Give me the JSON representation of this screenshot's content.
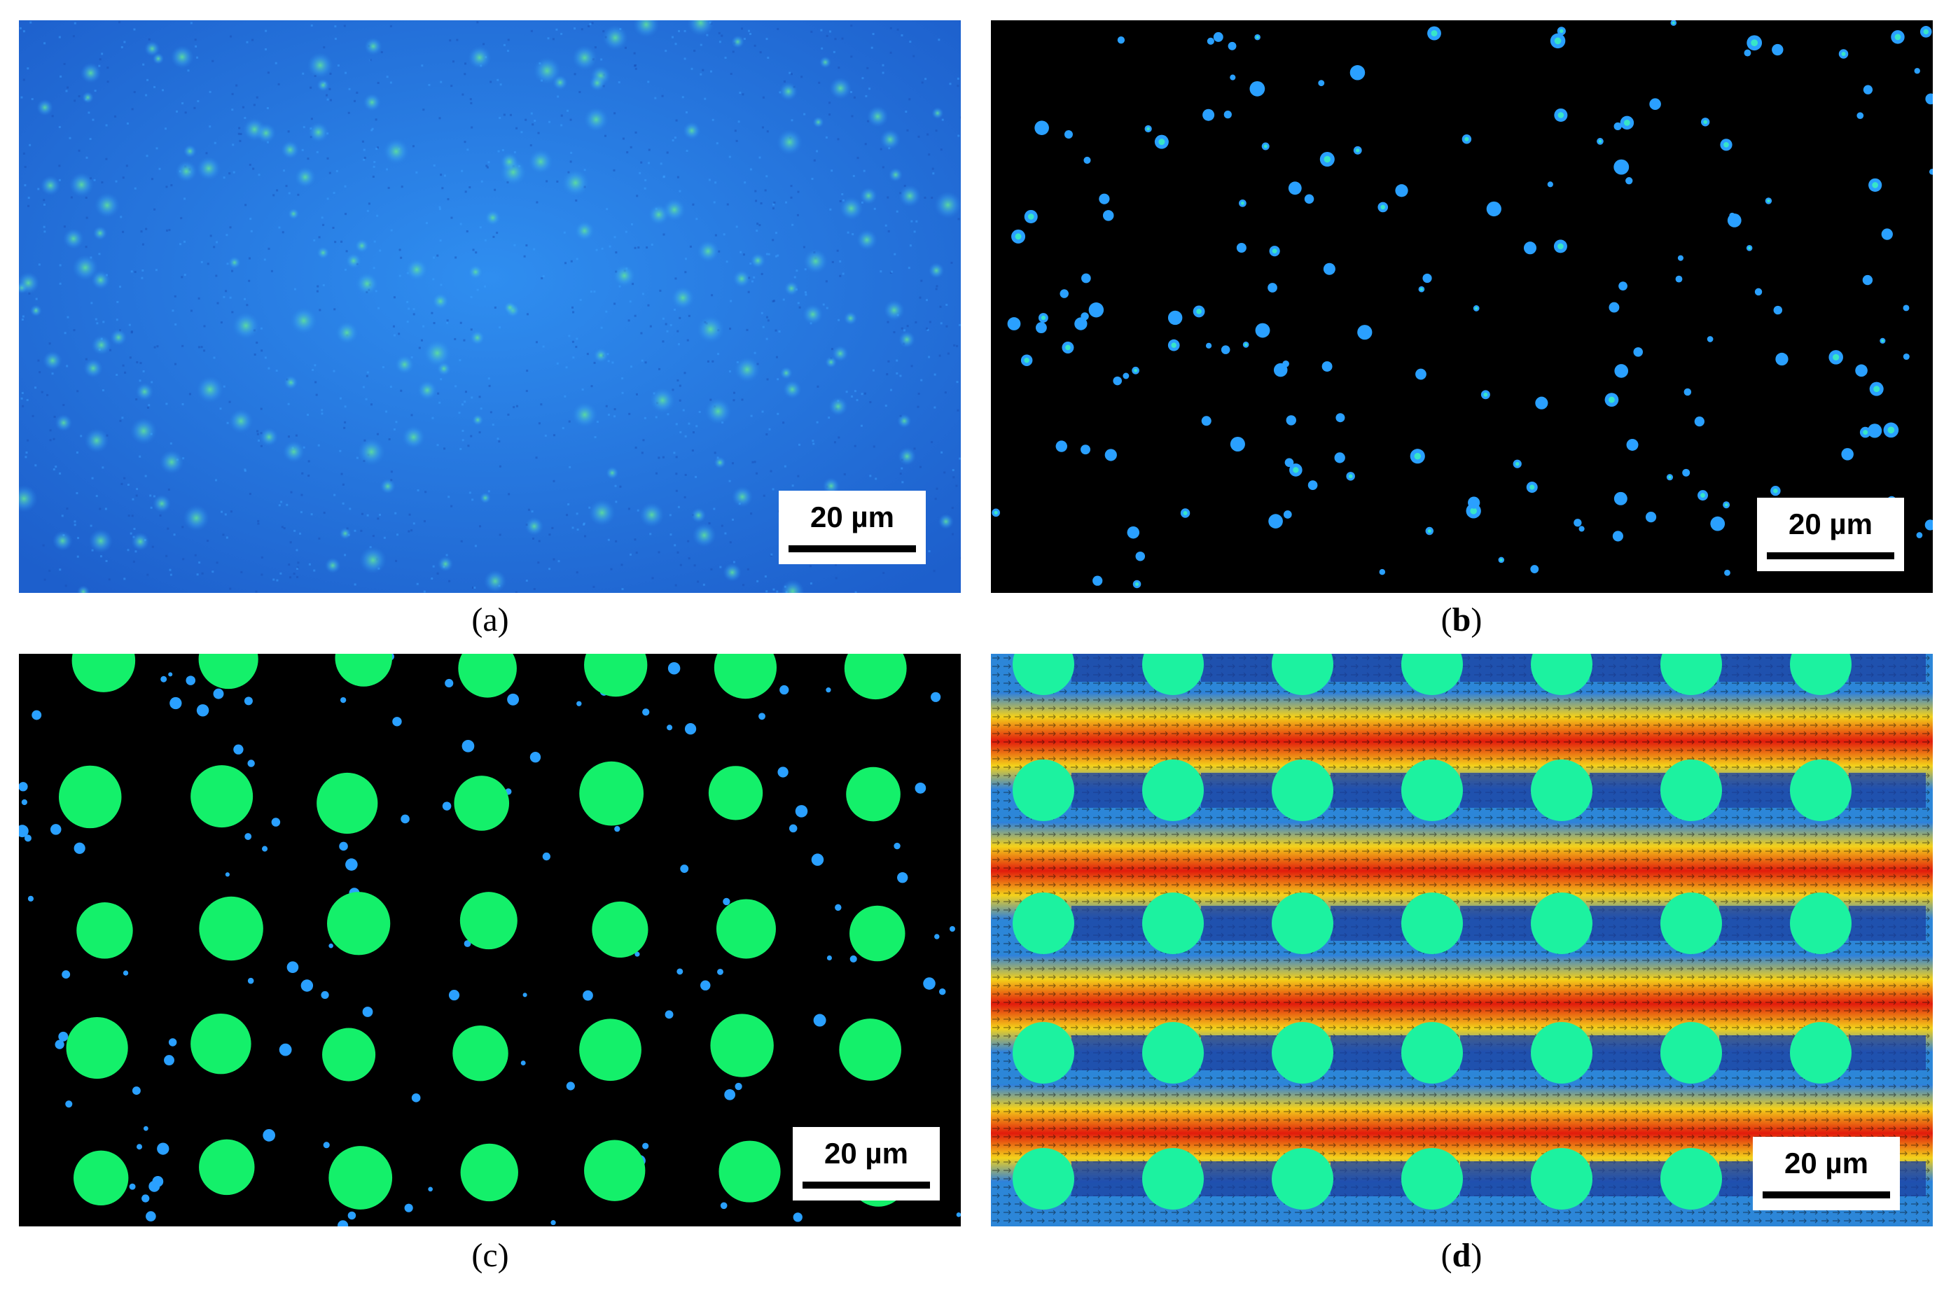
{
  "panels": [
    {
      "id": "a",
      "caption": "a",
      "caption_bold": false,
      "scale_label": "20 µm",
      "description_icon": "fluorescence-particles-blue-background"
    },
    {
      "id": "b",
      "caption": "b",
      "caption_bold": true,
      "scale_label": "20 µm",
      "description_icon": "particles-black-background"
    },
    {
      "id": "c",
      "caption": "c",
      "caption_bold": false,
      "scale_label": "20 µm",
      "description_icon": "pillar-array-with-particles"
    },
    {
      "id": "d",
      "caption": "d",
      "caption_bold": true,
      "scale_label": "20 µm",
      "description_icon": "velocity-field-heatmap-with-pillars"
    }
  ],
  "caption_parens": {
    "open": "(",
    "close": ")"
  },
  "colors": {
    "panel_a_background": "#1f6fd6",
    "particle_blue": "#2aa0ff",
    "particle_cyan": "#39e6c6",
    "pillar_green": "#14f06a",
    "pillar_teal": "#1cf2a0",
    "flow_red": "#e21b0c",
    "flow_yellow": "#f4d21a",
    "flow_blue": "#1a3f9a"
  }
}
